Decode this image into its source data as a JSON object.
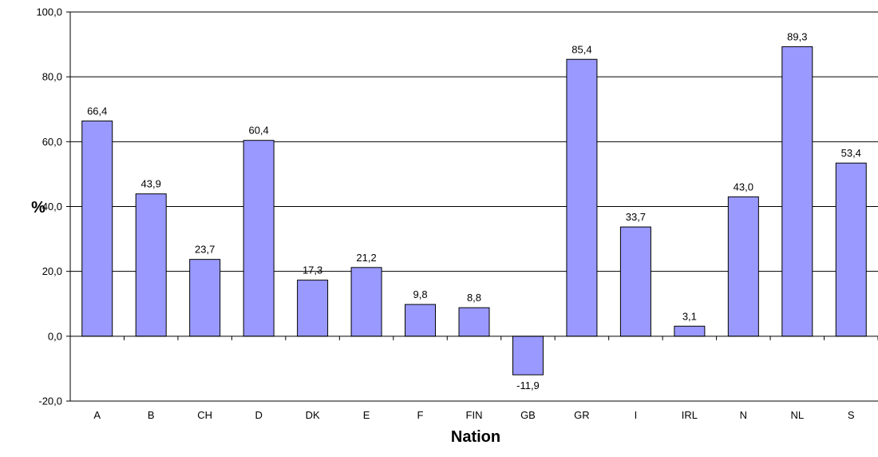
{
  "chart_data": {
    "type": "bar",
    "categories": [
      "A",
      "B",
      "CH",
      "D",
      "DK",
      "E",
      "F",
      "FIN",
      "GB",
      "GR",
      "I",
      "IRL",
      "N",
      "NL",
      "S"
    ],
    "values": [
      66.4,
      43.9,
      23.7,
      60.4,
      17.3,
      21.2,
      9.8,
      8.8,
      -11.9,
      85.4,
      33.7,
      3.1,
      43.0,
      89.3,
      53.4
    ],
    "value_labels": [
      "66,4",
      "43,9",
      "23,7",
      "60,4",
      "17,3",
      "21,2",
      "9,8",
      "8,8",
      "-11,9",
      "85,4",
      "33,7",
      "3,1",
      "43,0",
      "89,3",
      "53,4"
    ],
    "title": "",
    "xlabel": "Nation",
    "ylabel": "%",
    "ylim": [
      -20,
      100
    ],
    "yticks": [
      -20,
      0,
      20,
      40,
      60,
      80,
      100
    ],
    "ytick_labels": [
      "-20,0",
      "0,0",
      "20,0",
      "40,0",
      "60,0",
      "80,0",
      "100,0"
    ],
    "grid": true,
    "legend": "none",
    "colors": {
      "bar_fill": "#9999ff",
      "bar_stroke": "#000000",
      "grid": "#000000",
      "axis": "#000000"
    }
  }
}
